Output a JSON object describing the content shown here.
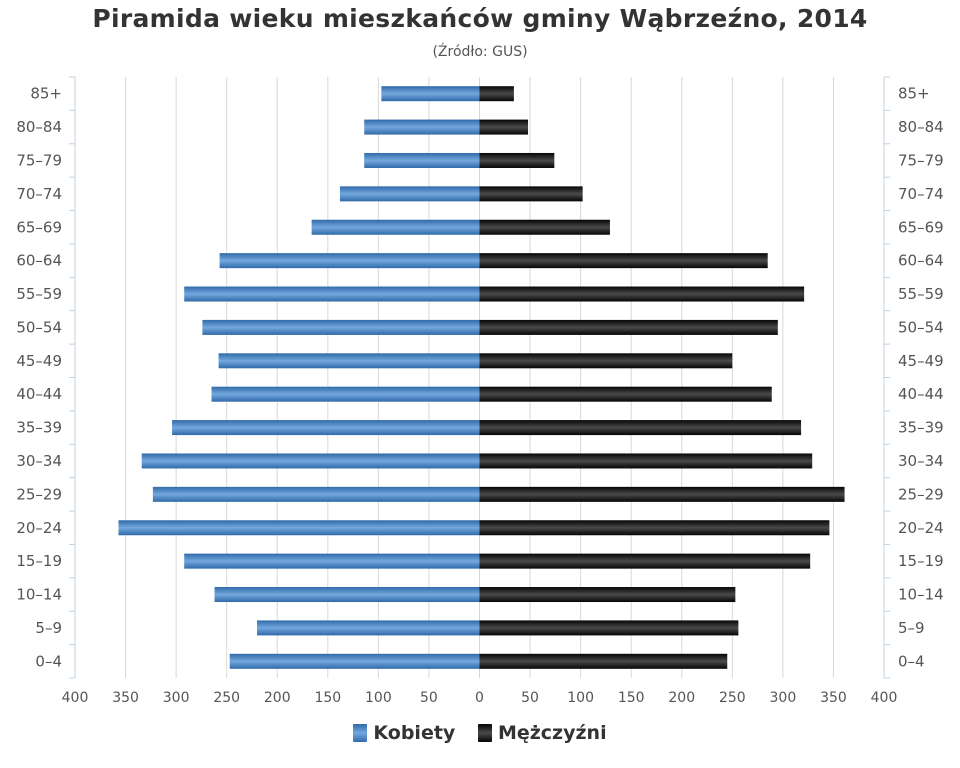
{
  "chart_data": {
    "type": "bar",
    "orientation": "horizontal",
    "title": "Piramida wieku mieszkańców gminy Wąbrzeźno, 2014",
    "subtitle": "(Źródło: GUS)",
    "categories": [
      "85+",
      "80–84",
      "75–79",
      "70–74",
      "65–69",
      "60–64",
      "55–59",
      "50–54",
      "45–49",
      "40–44",
      "35–39",
      "30–34",
      "25–29",
      "20–24",
      "15–19",
      "10–14",
      "5–9",
      "0–4"
    ],
    "series": [
      {
        "name": "Kobiety",
        "color": "#4a86c6",
        "values": [
          97,
          114,
          114,
          138,
          166,
          257,
          292,
          274,
          258,
          265,
          304,
          334,
          323,
          357,
          292,
          262,
          220,
          247
        ]
      },
      {
        "name": "Mężczyźni",
        "color": "#1a1a1a",
        "values": [
          34,
          48,
          74,
          102,
          129,
          285,
          321,
          295,
          250,
          289,
          318,
          329,
          361,
          346,
          327,
          253,
          256,
          245
        ]
      }
    ],
    "xticks": [
      "400",
      "350",
      "300",
      "250",
      "200",
      "150",
      "100",
      "50",
      "0",
      "50",
      "100",
      "150",
      "200",
      "250",
      "300",
      "350",
      "400"
    ],
    "xlim": [
      -400,
      400
    ],
    "grid": true,
    "legend": "bottom"
  }
}
